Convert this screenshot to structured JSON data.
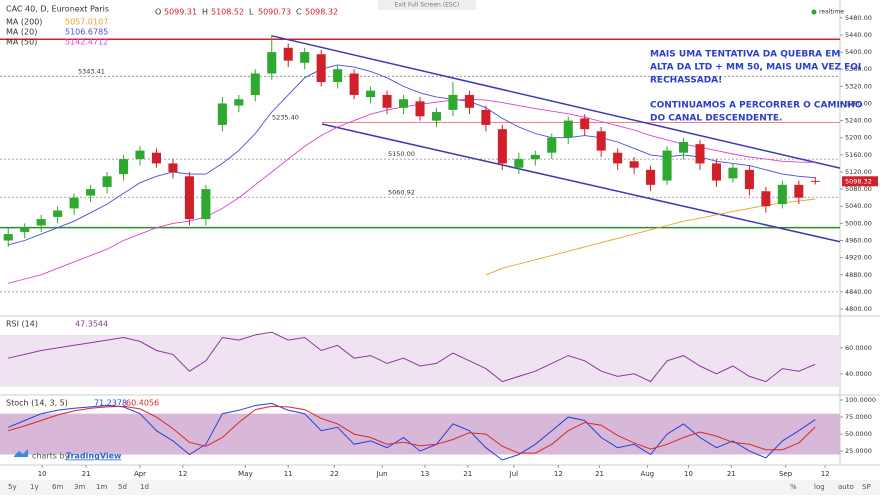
{
  "header": {
    "exit_full_screen": "Exit Full Screen (ESC)",
    "realtime": "realtime"
  },
  "chart_data": [
    {
      "type": "candlestick",
      "title": "CAC 40, D, Euronext Paris",
      "ohlc_labels": [
        "O",
        "H",
        "L",
        "C"
      ],
      "open": [
        4960,
        4980,
        4995,
        5015,
        5035,
        5065,
        5085,
        5115,
        5150,
        5165,
        5140,
        5110,
        5010,
        5230,
        5275,
        5300,
        5350,
        5410,
        5375,
        5395,
        5330,
        5350,
        5295,
        5300,
        5270,
        5285,
        5240,
        5265,
        5300,
        5265,
        5220,
        5130,
        5150,
        5165,
        5200,
        5245,
        5215,
        5165,
        5145,
        5125,
        5100,
        5165,
        5185,
        5140,
        5105,
        5125,
        5075,
        5045,
        5090,
        5099.31
      ],
      "high": [
        4990,
        5000,
        5020,
        5040,
        5070,
        5090,
        5120,
        5160,
        5180,
        5175,
        5150,
        5120,
        5090,
        5295,
        5300,
        5360,
        5440,
        5420,
        5410,
        5405,
        5370,
        5360,
        5320,
        5310,
        5300,
        5295,
        5270,
        5330,
        5310,
        5275,
        5230,
        5165,
        5170,
        5210,
        5250,
        5255,
        5225,
        5175,
        5155,
        5135,
        5180,
        5200,
        5195,
        5150,
        5140,
        5135,
        5085,
        5100,
        5100,
        5108.52
      ],
      "low": [
        4945,
        4965,
        4980,
        5000,
        5020,
        5050,
        5070,
        5100,
        5135,
        5130,
        5105,
        4995,
        4995,
        5215,
        5260,
        5285,
        5335,
        5365,
        5360,
        5320,
        5315,
        5290,
        5280,
        5255,
        5255,
        5240,
        5225,
        5250,
        5255,
        5215,
        5125,
        5115,
        5135,
        5150,
        5185,
        5205,
        5155,
        5125,
        5115,
        5075,
        5090,
        5150,
        5125,
        5085,
        5095,
        5065,
        5025,
        5035,
        5045,
        5090.73
      ],
      "close": [
        4975,
        4990,
        5010,
        5030,
        5060,
        5080,
        5110,
        5150,
        5170,
        5140,
        5120,
        5010,
        5080,
        5280,
        5290,
        5350,
        5400,
        5380,
        5400,
        5330,
        5360,
        5300,
        5310,
        5270,
        5290,
        5250,
        5260,
        5300,
        5270,
        5230,
        5140,
        5150,
        5160,
        5200,
        5240,
        5220,
        5170,
        5140,
        5130,
        5090,
        5170,
        5190,
        5140,
        5100,
        5130,
        5080,
        5040,
        5090,
        5060,
        5098.32
      ],
      "up_color": "#2fa82f",
      "down_color": "#d0202a",
      "series": [
        {
          "name": "MA (200)",
          "color": "#f39c2a",
          "values": [
            null,
            null,
            null,
            null,
            null,
            null,
            null,
            null,
            null,
            null,
            null,
            null,
            null,
            null,
            null,
            null,
            null,
            null,
            null,
            null,
            null,
            null,
            null,
            null,
            null,
            null,
            null,
            null,
            null,
            4880,
            4895,
            4905,
            4915,
            4925,
            4935,
            4945,
            4955,
            4965,
            4975,
            4985,
            4995,
            5005,
            5012,
            5020,
            5028,
            5035,
            5042,
            5048,
            5052,
            5057.0107
          ]
        },
        {
          "name": "MA (20)",
          "color": "#4a4ae0",
          "values": [
            4950,
            4960,
            4975,
            4990,
            5005,
            5025,
            5045,
            5070,
            5095,
            5110,
            5120,
            5115,
            5115,
            5140,
            5170,
            5210,
            5260,
            5300,
            5340,
            5360,
            5370,
            5365,
            5355,
            5340,
            5320,
            5305,
            5295,
            5290,
            5285,
            5270,
            5245,
            5225,
            5210,
            5200,
            5200,
            5205,
            5200,
            5190,
            5175,
            5160,
            5155,
            5160,
            5155,
            5145,
            5140,
            5135,
            5125,
            5115,
            5110,
            5106.6785
          ]
        },
        {
          "name": "MA (50)",
          "color": "#e040d0",
          "values": [
            4860,
            4870,
            4880,
            4895,
            4910,
            4925,
            4940,
            4960,
            4975,
            4990,
            5000,
            5005,
            5015,
            5035,
            5060,
            5090,
            5120,
            5150,
            5180,
            5205,
            5225,
            5240,
            5255,
            5265,
            5272,
            5278,
            5283,
            5288,
            5290,
            5288,
            5282,
            5275,
            5268,
            5262,
            5256,
            5248,
            5238,
            5228,
            5218,
            5205,
            5195,
            5185,
            5178,
            5170,
            5162,
            5155,
            5150,
            5145,
            5143,
            5142.4712
          ]
        }
      ],
      "xlim": [
        -0.5,
        50.5
      ],
      "xticks": [
        {
          "value": 2.06,
          "label": "10"
        },
        {
          "value": 4.73,
          "label": "21"
        },
        {
          "value": 8,
          "label": "Apr"
        },
        {
          "value": 10.6,
          "label": "12"
        },
        {
          "value": 14.4,
          "label": "May"
        },
        {
          "value": 17,
          "label": "11"
        },
        {
          "value": 19.8,
          "label": "22"
        },
        {
          "value": 22.7,
          "label": "Jun"
        },
        {
          "value": 25.3,
          "label": "13"
        },
        {
          "value": 27.9,
          "label": "21"
        },
        {
          "value": 30.7,
          "label": "Jul"
        },
        {
          "value": 33.4,
          "label": "12"
        },
        {
          "value": 35.9,
          "label": "21"
        },
        {
          "value": 38.8,
          "label": "Aug"
        },
        {
          "value": 41.3,
          "label": "10"
        },
        {
          "value": 43.9,
          "label": "21"
        },
        {
          "value": 47.2,
          "label": "Sep"
        },
        {
          "value": 49.6,
          "label": "12"
        }
      ],
      "ylim": [
        4786,
        5503
      ],
      "yticks": [
        {
          "value": 4800,
          "label": "4800.00"
        },
        {
          "value": 4840,
          "label": "4840.00"
        },
        {
          "value": 4880,
          "label": "4880.00"
        },
        {
          "value": 4920,
          "label": "4920.00"
        },
        {
          "value": 4960,
          "label": "4960.00"
        },
        {
          "value": 5000,
          "label": "5000.00"
        },
        {
          "value": 5040,
          "label": "5040.00"
        },
        {
          "value": 5080,
          "label": "5080.00"
        },
        {
          "value": 5120,
          "label": "5120.00"
        },
        {
          "value": 5160,
          "label": "5160.00"
        },
        {
          "value": 5200,
          "label": "5200.00"
        },
        {
          "value": 5240,
          "label": "5240.00"
        },
        {
          "value": 5280,
          "label": "5280.00"
        },
        {
          "value": 5320,
          "label": "5320.00"
        },
        {
          "value": 5360,
          "label": "5360.00"
        },
        {
          "value": 5400,
          "label": "5400.00"
        },
        {
          "value": 5440,
          "label": "5440.00"
        },
        {
          "value": 5480,
          "label": "5480.00"
        }
      ],
      "levels": [
        {
          "value": 5430,
          "color": "#d0202a"
        },
        {
          "value": 4990,
          "color": "#2e8b2e"
        },
        {
          "value": 5343.41,
          "label": "5343.41",
          "color": "#888888"
        },
        {
          "value": 5235.4,
          "label": "5235.40",
          "color": "#f07070"
        },
        {
          "value": 5150,
          "label": "5150.00",
          "color": "#888888"
        },
        {
          "value": 5060.92,
          "label": "5060.92",
          "color": "#888888"
        },
        {
          "value": 4840,
          "color": "#888888"
        }
      ],
      "trendlines": [
        {
          "x": [
            16,
            50.5
          ],
          "y": [
            5438,
            5129
          ]
        },
        {
          "x": [
            19.05,
            50.5
          ],
          "y": [
            5232,
            4957
          ]
        }
      ],
      "trendline_color": "#3a3ab8",
      "annotation": [
        [
          "MAIS UMA TENTATIVA DA QUEBRA EM",
          "ALTA DA LTD + MM 50, MAIS UMA VEZ FOI",
          "RECHASSADA!"
        ],
        [
          "CONTINUAMOS A PERCORRER O CAMINHO",
          "DO CANAL DESCENDENTE."
        ]
      ]
    },
    {
      "type": "line",
      "title": "RSI (14)",
      "color": "#8a3a9a",
      "values": [
        52,
        55,
        58,
        60,
        62,
        64,
        66,
        68,
        65,
        58,
        55,
        42,
        50,
        68,
        66,
        70,
        72,
        66,
        68,
        58,
        62,
        52,
        54,
        48,
        52,
        46,
        48,
        56,
        50,
        44,
        34,
        38,
        42,
        48,
        54,
        50,
        42,
        38,
        40,
        34,
        50,
        54,
        46,
        40,
        46,
        38,
        34,
        44,
        42,
        47.3544
      ],
      "ylim": [
        26,
        83
      ],
      "yticks": [
        {
          "value": 60,
          "label": "60.0000"
        },
        {
          "value": 40,
          "label": "40.0000"
        }
      ],
      "band": [
        30,
        70
      ]
    },
    {
      "type": "line",
      "title": "Stoch (14, 3, 5)",
      "series": [
        {
          "color": "#2a3fd8",
          "values": [
            60,
            70,
            80,
            85,
            88,
            90,
            92,
            90,
            80,
            55,
            40,
            20,
            35,
            80,
            85,
            92,
            95,
            85,
            80,
            55,
            60,
            35,
            40,
            30,
            45,
            25,
            35,
            65,
            55,
            30,
            12,
            20,
            35,
            55,
            75,
            70,
            45,
            30,
            35,
            20,
            50,
            65,
            45,
            30,
            40,
            25,
            15,
            40,
            55,
            71.2378
          ]
        },
        {
          "color": "#d82a2a",
          "values": [
            55,
            62,
            70,
            78,
            84,
            88,
            90,
            91,
            87,
            75,
            58,
            38,
            32,
            45,
            67,
            86,
            91,
            90,
            86,
            73,
            65,
            50,
            45,
            35,
            38,
            33,
            35,
            42,
            52,
            50,
            32,
            22,
            22,
            35,
            55,
            67,
            63,
            48,
            37,
            28,
            35,
            45,
            53,
            47,
            38,
            35,
            27,
            27,
            37,
            60.4056
          ]
        }
      ],
      "ylim": [
        9,
        103
      ],
      "yticks": [
        {
          "value": 100,
          "label": "100.0000"
        },
        {
          "value": 75,
          "label": "75.0000"
        },
        {
          "value": 50,
          "label": "50.0000"
        },
        {
          "value": 25,
          "label": "25.0000"
        }
      ],
      "band": [
        20,
        80
      ]
    }
  ],
  "footer": {
    "ranges": [
      "5y",
      "1y",
      "6m",
      "3m",
      "1m",
      "5d",
      "1d"
    ],
    "options": [
      "%",
      "log",
      "auto",
      "SP"
    ],
    "brand_prefix": "charts by",
    "brand": "TradingView"
  }
}
